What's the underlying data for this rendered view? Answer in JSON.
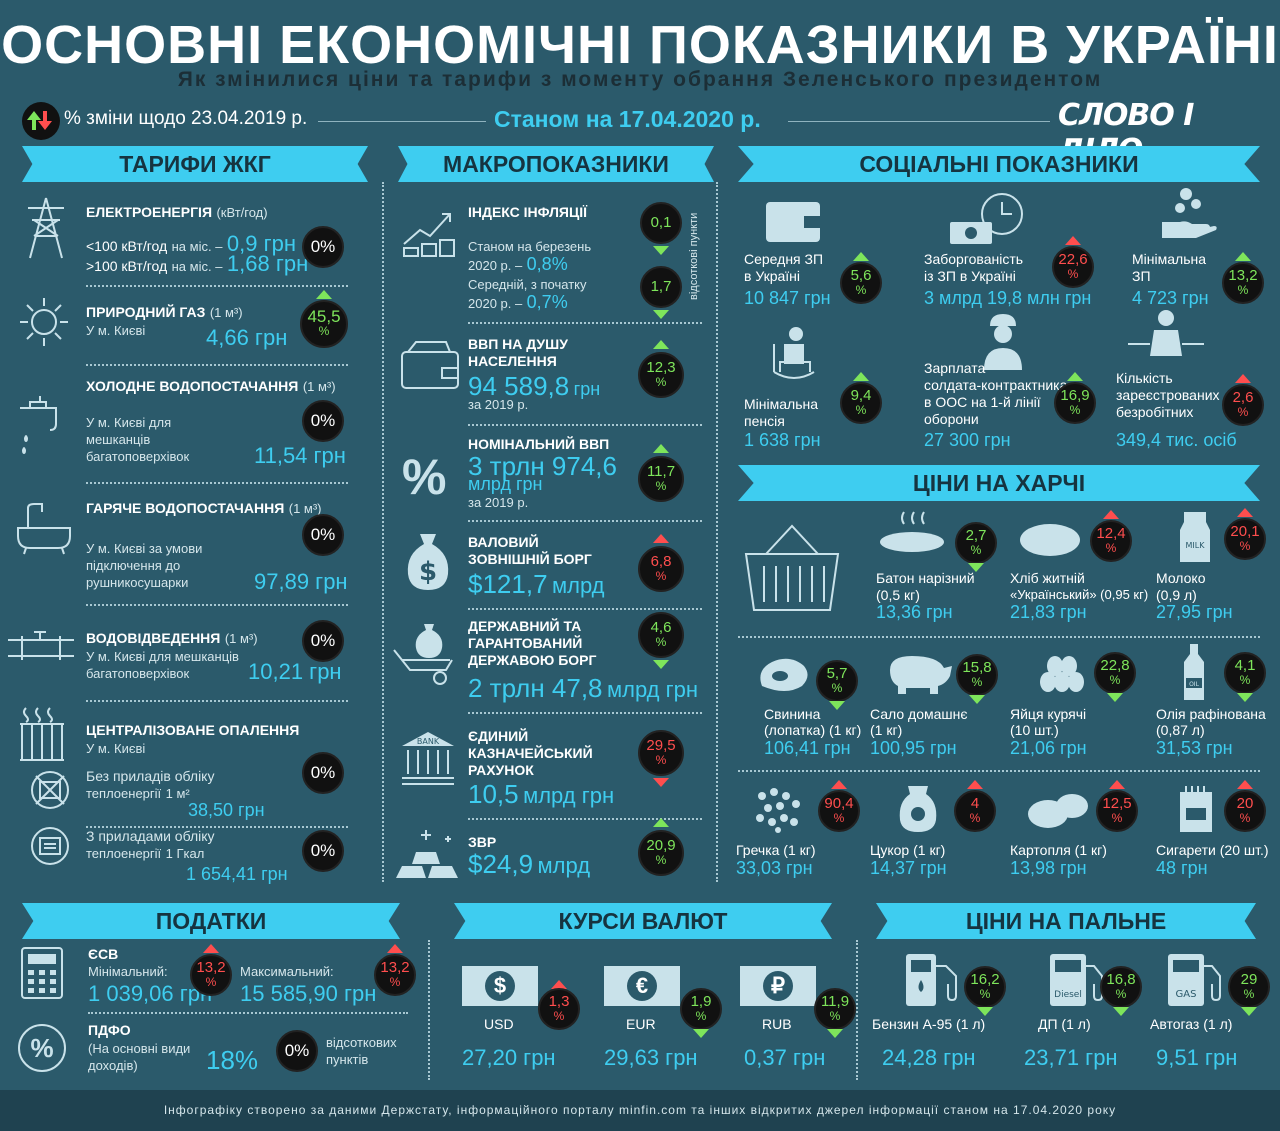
{
  "header": {
    "title": "ОСНОВНІ ЕКОНОМІЧНІ ПОКАЗНИКИ В УКРАЇНІ",
    "subtitle": "Як змінилися ціни та тарифи з моменту обрання Зеленського президентом",
    "legend": "% зміни щодо 23.04.2019 р.",
    "date": "Станом на 17.04.2020 р.",
    "logo": "СЛОВО І ДІЛО"
  },
  "colors": {
    "background": "#2b5a6b",
    "accent": "#3ecdf0",
    "up": "#7ee55b",
    "down": "#ff4e4e"
  },
  "tariffs": {
    "banner": "ТАРИФИ ЖКГ",
    "electricity": {
      "title": "ЕЛЕКТРОЕНЕРГІЯ",
      "unit": "(кВт/год)",
      "line1": "<100 кВт/год",
      "line1_sub": "на міс. –",
      "line1_val": "0,9 грн",
      "line2": ">100 кВт/год",
      "line2_sub": "на міс. –",
      "line2_val": "1,68 грн",
      "change": "0%"
    },
    "gas": {
      "title": "ПРИРОДНИЙ ГАЗ",
      "unit": "(1 м³)",
      "sub": "У м. Києві",
      "value": "4,66 грн",
      "change": "45,5",
      "pct": "%"
    },
    "cold_water": {
      "title": "ХОЛОДНЕ ВОДОПОСТАЧАННЯ",
      "unit": "(1 м³)",
      "sub1": "У м. Києві для",
      "sub2": "мешканців",
      "sub3": "багатоповерхівок",
      "value": "11,54 грн",
      "change": "0%"
    },
    "hot_water": {
      "title": "ГАРЯЧЕ ВОДОПОСТАЧАННЯ",
      "unit": "(1 м³)",
      "sub1": "У м. Києві за умови",
      "sub2": "підключення до",
      "sub3": "рушникосушарки",
      "value": "97,89 грн",
      "change": "0%"
    },
    "sewage": {
      "title": "ВОДОВІДВЕДЕННЯ",
      "unit": "(1 м³)",
      "sub1": "У м. Києві для мешканців",
      "sub2": "багатоповерхівок",
      "value": "10,21 грн",
      "change": "0%"
    },
    "heating": {
      "title": "ЦЕНТРАЛІЗОВАНЕ ОПАЛЕННЯ",
      "sub": "У м. Києві",
      "no_meter": {
        "t1": "Без приладів обліку",
        "t2": "теплоенергії",
        "unit": "1 м²",
        "value": "38,50 грн",
        "change": "0%"
      },
      "meter": {
        "t1": "З приладами обліку",
        "t2": "теплоенергії",
        "unit": "1 Гкал",
        "value": "1 654,41 грн",
        "change": "0%"
      }
    }
  },
  "macro": {
    "banner": "МАКРОПОКАЗНИКИ",
    "inflation": {
      "title": "ІНДЕКС ІНФЛЯЦІЇ",
      "l1": "Станом на березень",
      "l2": "2020 р. –",
      "v1": "0,8%",
      "l3": "Середній, з початку",
      "l4": "2020 р. –",
      "v2": "0,7%",
      "c1": "0,1",
      "c2": "1,7",
      "side": "відсоткові пункти"
    },
    "gdp_pc": {
      "title1": "ВВП НА ДУШУ",
      "title2": "НАСЕЛЕННЯ",
      "value": "94 589,8",
      "unit": "грн",
      "year": "за 2019 р.",
      "change": "12,3",
      "pct": "%"
    },
    "gdp": {
      "title": "НОМІНАЛЬНИЙ ВВП",
      "value": "3 трлн 974,6",
      "unit": "млрд грн",
      "year": "за 2019 р.",
      "change": "11,7",
      "pct": "%"
    },
    "ext_debt": {
      "title1": "ВАЛОВИЙ",
      "title2": "ЗОВНІШНІЙ БОРГ",
      "value": "$121,7",
      "unit": "млрд",
      "change": "6,8",
      "pct": "%"
    },
    "state_debt": {
      "title1": "ДЕРЖАВНИЙ ТА",
      "title2": "ГАРАНТОВАНИЙ",
      "title3": "ДЕРЖАВОЮ БОРГ",
      "value": "2 трлн 47,8",
      "unit": "млрд грн",
      "change": "4,6",
      "pct": "%"
    },
    "treasury": {
      "title1": "ЄДИНИЙ",
      "title2": "КАЗНАЧЕЙСЬКИЙ",
      "title3": "РАХУНОК",
      "value": "10,5",
      "unit": "млрд грн",
      "change": "29,5",
      "pct": "%"
    },
    "reserves": {
      "title": "ЗВР",
      "value": "$24,9",
      "unit": "млрд",
      "change": "20,9",
      "pct": "%"
    }
  },
  "social": {
    "banner": "СОЦІАЛЬНІ ПОКАЗНИКИ",
    "avg_salary": {
      "t1": "Середня ЗП",
      "t2": "в Україні",
      "value": "10 847 грн",
      "change": "5,6",
      "pct": "%"
    },
    "arrears": {
      "t1": "Заборгованість",
      "t2": "із ЗП в Україні",
      "value": "3 млрд 19,8 млн грн",
      "change": "22,6",
      "pct": "%"
    },
    "min_salary": {
      "t1": "Мінімальна",
      "t2": "ЗП",
      "value": "4 723 грн",
      "change": "13,2",
      "pct": "%"
    },
    "min_pension": {
      "t1": "Мінімальна",
      "t2": "пенсія",
      "value": "1 638 грн",
      "change": "9,4",
      "pct": "%"
    },
    "soldier": {
      "t1": "Зарплата",
      "t2": "солдата-контрактника",
      "t3": "в ООС на 1-й лінії",
      "t4": "оборони",
      "value": "27 300 грн",
      "change": "16,9",
      "pct": "%"
    },
    "unemployed": {
      "t1": "Кількість",
      "t2": "зареєстрованих",
      "t3": "безробітних",
      "value": "349,4 тис. осіб",
      "change": "2,6",
      "pct": "%"
    }
  },
  "food": {
    "banner": "ЦІНИ НА ХАРЧІ",
    "items": [
      {
        "t1": "Батон нарізний",
        "t2": "(0,5 кг)",
        "value": "13,36 грн",
        "change": "2,7",
        "pct": "%"
      },
      {
        "t1": "Хліб житній",
        "t2": "«Український» (0,95 кг)",
        "value": "21,83 грн",
        "change": "12,4",
        "pct": "%"
      },
      {
        "t1": "Молоко",
        "t2": "(0,9 л)",
        "value": "27,95 грн",
        "change": "20,1",
        "pct": "%"
      },
      {
        "t1": "Свинина",
        "t2": "(лопатка) (1 кг)",
        "value": "106,41 грн",
        "change": "5,7",
        "pct": "%"
      },
      {
        "t1": "Сало домашнє",
        "t2": "(1 кг)",
        "value": "100,95 грн",
        "change": "15,8",
        "pct": "%"
      },
      {
        "t1": "Яйця курячі",
        "t2": "(10 шт.)",
        "value": "21,06 грн",
        "change": "22,8",
        "pct": "%"
      },
      {
        "t1": "Олія рафінована",
        "t2": "(0,87 л)",
        "value": "31,53 грн",
        "change": "4,1",
        "pct": "%"
      },
      {
        "t1": "Гречка (1 кг)",
        "value": "33,03 грн",
        "change": "90,4",
        "pct": "%"
      },
      {
        "t1": "Цукор (1 кг)",
        "value": "14,37 грн",
        "change": "4",
        "pct": "%"
      },
      {
        "t1": "Картопля (1 кг)",
        "value": "13,98 грн",
        "change": "12,5",
        "pct": "%"
      },
      {
        "t1": "Сигарети (20 шт.)",
        "value": "48 грн",
        "change": "20",
        "pct": "%"
      }
    ],
    "milk_label": "MILK",
    "oil_label": "OIL"
  },
  "taxes": {
    "banner": "ПОДАТКИ",
    "esv": {
      "title": "ЄСВ",
      "min_label": "Мінімальний:",
      "min_value": "1 039,06 грн",
      "min_change": "13,2",
      "max_label": "Максимальний:",
      "max_value": "15 585,90 грн",
      "max_change": "13,2",
      "pct": "%"
    },
    "pdfo": {
      "title": "ПДФО",
      "s1": "(На основні види",
      "s2": "доходів)",
      "value": "18%",
      "change": "0%",
      "note1": "відсоткових",
      "note2": "пунктів"
    }
  },
  "currency": {
    "banner": "КУРСИ ВАЛЮТ",
    "items": [
      {
        "symbol": "$",
        "code": "USD",
        "value": "27,20 грн",
        "change": "1,3",
        "pct": "%"
      },
      {
        "symbol": "€",
        "code": "EUR",
        "value": "29,63 грн",
        "change": "1,9",
        "pct": "%"
      },
      {
        "symbol": "₽",
        "code": "RUB",
        "value": "0,37 грн",
        "change": "11,9",
        "pct": "%"
      }
    ]
  },
  "fuel": {
    "banner": "ЦІНИ НА ПАЛЬНЕ",
    "items": [
      {
        "label": "Бензин А-95 (1 л)",
        "value": "24,28 грн",
        "change": "16,2",
        "pct": "%"
      },
      {
        "label": "ДП (1 л)",
        "value": "23,71 грн",
        "change": "16,8",
        "pct": "%",
        "pump": "Diesel"
      },
      {
        "label": "Автогаз (1 л)",
        "value": "9,51 грн",
        "change": "29",
        "pct": "%",
        "pump": "GAS"
      }
    ]
  },
  "bank_label": "BANK",
  "footer": "Інфографіку створено за даними Держстату, інформаційного порталу minfin.com та інших відкритих джерел інформації станом на 17.04.2020 року"
}
